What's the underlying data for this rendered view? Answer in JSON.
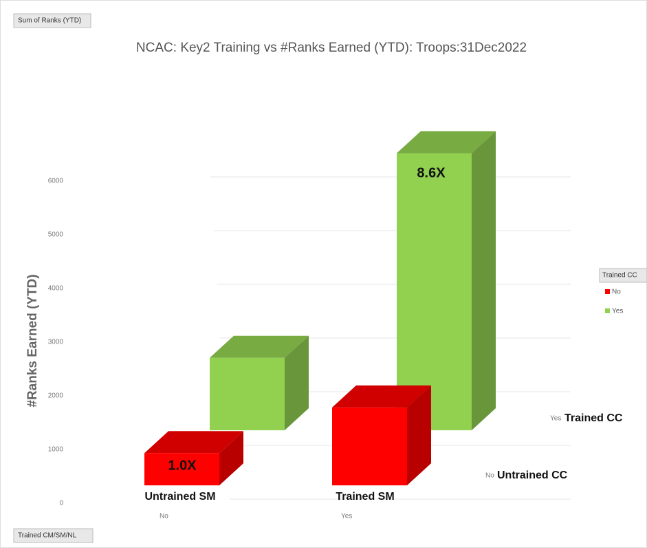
{
  "chart_data": {
    "type": "bar3d",
    "title": "NCAC: Key2 Training vs #Ranks Earned (YTD): Troops:31Dec2022",
    "ylabel": "#Ranks Earned (YTD)",
    "categories": [
      "No",
      "Yes"
    ],
    "series": [
      {
        "name": "No",
        "color": "#ff0000",
        "values": [
          600,
          1450
        ]
      },
      {
        "name": "Yes",
        "color": "#92d050",
        "values": [
          1350,
          5160
        ]
      }
    ],
    "ylim": [
      0,
      7000
    ],
    "yticks": [
      0,
      1000,
      2000,
      3000,
      4000,
      5000,
      6000
    ],
    "grid": true,
    "legend_title": "Trained CC",
    "legend_position": "right",
    "annotations": [
      "1.0X",
      "8.6X",
      "Untrained SM",
      "Trained SM",
      "Trained CC",
      "Untrained CC"
    ],
    "value_field": "Sum of Ranks (YTD)",
    "axis_field": "Trained CM/SM/NL"
  }
}
